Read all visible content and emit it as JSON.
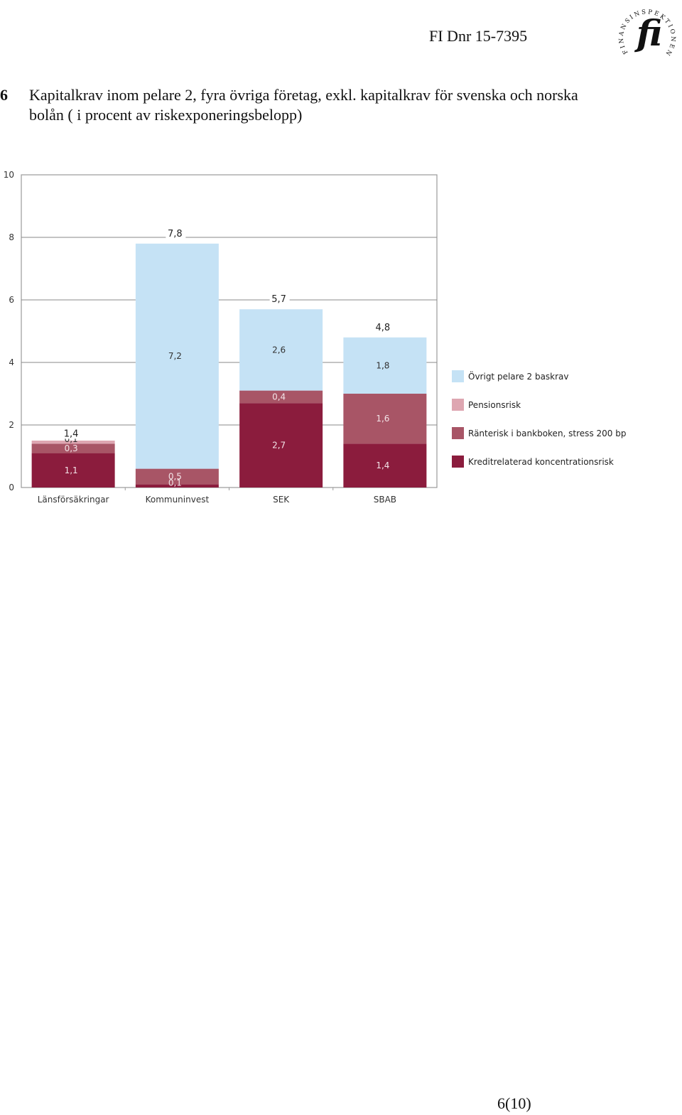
{
  "header": {
    "doc_ref": "FI Dnr 15-7395",
    "logo_text": "FINANSINSPEKTIONEN",
    "logo_mark": "fi"
  },
  "heading": {
    "number": "6",
    "text": "Kapitalkrav inom pelare 2, fyra övriga företag, exkl. kapitalkrav för svenska och norska bolån ( i procent av riskexponeringsbelopp)"
  },
  "chart_data": {
    "type": "bar",
    "stacked": true,
    "title": "",
    "xlabel": "",
    "ylabel": "",
    "ylim": [
      0,
      10
    ],
    "yticks": [
      "0",
      "2",
      "4",
      "6",
      "8",
      "10"
    ],
    "grid": true,
    "legend_position": "right",
    "categories": [
      "Länsförsäkringar",
      "Kommuninvest",
      "SEK",
      "SBAB"
    ],
    "totals": [
      1.4,
      7.8,
      5.7,
      4.8
    ],
    "total_labels": [
      "1,4",
      "7,8",
      "5,7",
      "4,8"
    ],
    "series": [
      {
        "name": "Kreditrelaterad koncentrationsrisk",
        "color": "#8b1c3d",
        "values": [
          1.1,
          0.1,
          2.7,
          1.4
        ],
        "labels": [
          "1,1",
          "0,1",
          "2,7",
          "1,4"
        ]
      },
      {
        "name": "Ränterisk i bankboken, stress 200 bp",
        "color": "#a85566",
        "values": [
          0.3,
          0.5,
          0.4,
          1.6
        ],
        "labels": [
          "0,3",
          "0,5",
          "0,4",
          "1,6"
        ]
      },
      {
        "name": "Pensionsrisk",
        "color": "#dea6b1",
        "values": [
          0.1,
          0,
          0,
          0
        ],
        "labels": [
          "0,1",
          "",
          "",
          ""
        ]
      },
      {
        "name": "Övrigt pelare 2 baskrav",
        "color": "#c5e2f5",
        "values": [
          0,
          7.2,
          2.6,
          1.8
        ],
        "labels": [
          "",
          "7,2",
          "2,6",
          "1,8"
        ]
      }
    ],
    "legend_order": [
      3,
      2,
      1,
      0
    ]
  },
  "footer": {
    "page_number": "6(10)"
  }
}
